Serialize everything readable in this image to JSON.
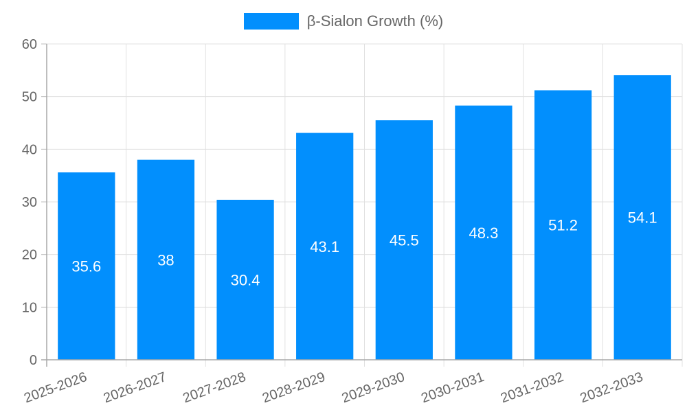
{
  "chart_data": {
    "type": "bar",
    "title": "",
    "xlabel": "",
    "ylabel": "",
    "categories": [
      "2025-2026",
      "2026-2027",
      "2027-2028",
      "2028-2029",
      "2029-2030",
      "2030-2031",
      "2031-2032",
      "2032-2033"
    ],
    "series": [
      {
        "name": "β-Sialon Growth (%)",
        "color": "#028ffd",
        "values": [
          35.6,
          38,
          30.4,
          43.1,
          45.5,
          48.3,
          51.2,
          54.1
        ],
        "data_labels": [
          "35.6",
          "38",
          "30.4",
          "43.1",
          "45.5",
          "48.3",
          "51.2",
          "54.1"
        ]
      }
    ],
    "ylim": [
      0,
      60
    ],
    "yticks": [
      0,
      10,
      20,
      30,
      40,
      50,
      60
    ],
    "grid": true,
    "legend_position": "top"
  },
  "legend": {
    "label": "β-Sialon Growth (%)"
  }
}
